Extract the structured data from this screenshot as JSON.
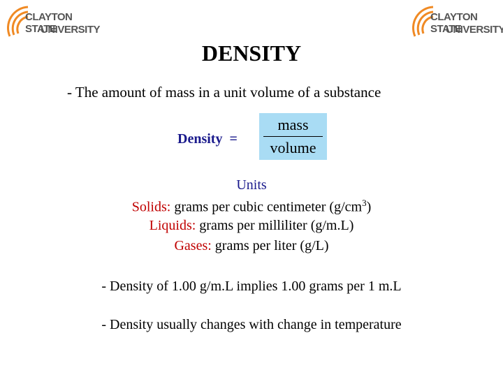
{
  "logos": [
    {
      "line1": "CLAYTON STATE",
      "line2": "UNIVERSITY"
    },
    {
      "line1": "CLAYTON STATE",
      "line2": "UNIVERSITY"
    }
  ],
  "title": "DENSITY",
  "definition": "- The amount of mass in a unit volume of a substance",
  "formula": {
    "label": "Density",
    "equals": "=",
    "numerator": "mass",
    "denominator": "volume"
  },
  "units": {
    "heading": "Units",
    "rows": [
      {
        "label": "Solids:",
        "text": "grams per cubic centimeter (g/cm",
        "sup": "3",
        "after": ")"
      },
      {
        "label": "Liquids:",
        "text": "grams per milliliter (g/m.L)"
      },
      {
        "label": "Gases:",
        "text": "grams per liter (g/L)"
      }
    ]
  },
  "notes": [
    "- Density of 1.00 g/m.L implies 1.00 grams per 1 m.L",
    "- Density usually changes with change in temperature"
  ]
}
